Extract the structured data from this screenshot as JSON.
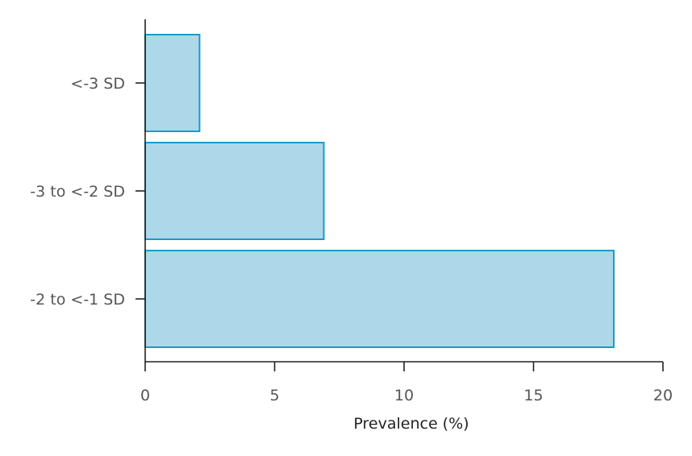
{
  "chart_data": {
    "type": "bar",
    "orientation": "horizontal",
    "title": "",
    "xlabel": "Prevalence (%)",
    "ylabel": "",
    "categories": [
      "<-3 SD",
      "-3 to <-2 SD",
      "-2 to <-1 SD"
    ],
    "values": [
      2.1,
      6.9,
      18.1
    ],
    "xlim": [
      0,
      20
    ],
    "xticks": [
      "0",
      "5",
      "10",
      "15",
      "20"
    ],
    "grid": false,
    "legend": "none",
    "colors": {
      "bar_fill": "#add8ea",
      "bar_stroke": "#1a9ac9",
      "axis": "#222222",
      "tick_label": "#555555"
    }
  }
}
